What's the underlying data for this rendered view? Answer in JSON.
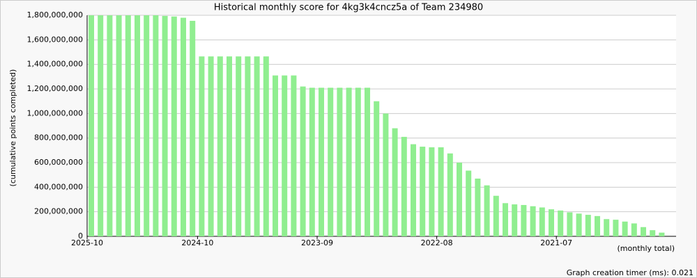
{
  "chart_data": {
    "type": "bar",
    "title": "Historical monthly score for 4kg3k4cncz5a of Team 234980",
    "y_label": "(cumulative points completed)",
    "x_label": "(monthly total)",
    "footer": "Graph creation timer (ms): 0.021",
    "color": "#90ee90",
    "grid": true,
    "categories": [
      "2025-10",
      null,
      null,
      null,
      null,
      null,
      null,
      null,
      null,
      null,
      null,
      null,
      "2024-10",
      null,
      null,
      null,
      null,
      null,
      null,
      null,
      null,
      null,
      null,
      null,
      null,
      "2023-09",
      null,
      null,
      null,
      null,
      null,
      null,
      null,
      null,
      null,
      null,
      null,
      null,
      "2022-08",
      null,
      null,
      null,
      null,
      null,
      null,
      null,
      null,
      null,
      null,
      null,
      null,
      "2021-07",
      null,
      null,
      null,
      null,
      null,
      null,
      null,
      null,
      null,
      null,
      null
    ],
    "values": [
      1800000000,
      1800000000,
      1800000000,
      1800000000,
      1800000000,
      1800000000,
      1800000000,
      1800000000,
      1795000000,
      1790000000,
      1780000000,
      1755000000,
      1465000000,
      1465000000,
      1465000000,
      1465000000,
      1465000000,
      1465000000,
      1465000000,
      1465000000,
      1310000000,
      1310000000,
      1310000000,
      1220000000,
      1210000000,
      1210000000,
      1210000000,
      1210000000,
      1210000000,
      1210000000,
      1210000000,
      1100000000,
      1000000000,
      880000000,
      810000000,
      750000000,
      730000000,
      725000000,
      725000000,
      675000000,
      600000000,
      535000000,
      470000000,
      415000000,
      330000000,
      270000000,
      260000000,
      255000000,
      245000000,
      235000000,
      220000000,
      210000000,
      195000000,
      185000000,
      175000000,
      165000000,
      140000000,
      135000000,
      120000000,
      105000000,
      75000000,
      50000000,
      30000000
    ],
    "ylim": [
      0,
      1800000000
    ],
    "yticks": [
      0,
      {
        "value": 200000000,
        "label": "200,000,000"
      },
      {
        "value": 400000000,
        "label": "400,000,000"
      },
      {
        "value": 600000000,
        "label": "600,000,000"
      },
      {
        "value": 800000000,
        "label": "800,000,000"
      },
      {
        "value": 1000000000,
        "label": "1,000,000,000"
      },
      {
        "value": 1200000000,
        "label": "1,200,000,000"
      },
      {
        "value": 1400000000,
        "label": "1,400,000,000"
      },
      {
        "value": 1600000000,
        "label": "1,600,000,000"
      },
      {
        "value": 1800000000,
        "label": "1,800,000,000"
      }
    ]
  }
}
